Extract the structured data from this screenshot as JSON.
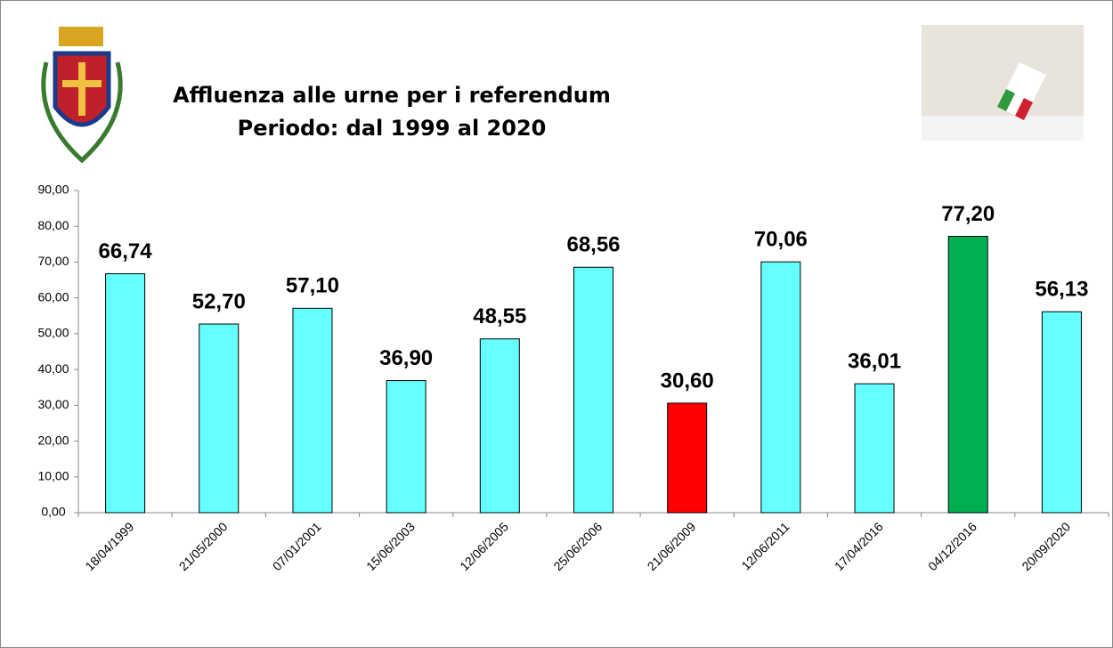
{
  "chart_data": {
    "type": "bar",
    "title": "Affluenza alle urne per i referendum",
    "subtitle": "Periodo: dal 1999 al 2020",
    "categories": [
      "18/04/1999",
      "21/05/2000",
      "07/01/2001",
      "15/06/2003",
      "12/06/2005",
      "25/06/2006",
      "21/06/2009",
      "12/06/2011",
      "17/04/2016",
      "04/12/2016",
      "20/09/2020"
    ],
    "values": [
      66.74,
      52.7,
      57.1,
      36.9,
      48.55,
      68.56,
      30.6,
      70.06,
      36.01,
      77.2,
      56.13
    ],
    "value_labels": [
      "66,74",
      "52,70",
      "57,10",
      "36,90",
      "48,55",
      "68,56",
      "30,60",
      "70,06",
      "36,01",
      "77,20",
      "56,13"
    ],
    "colors": [
      "#66ffff",
      "#66ffff",
      "#66ffff",
      "#66ffff",
      "#66ffff",
      "#66ffff",
      "#ff0000",
      "#66ffff",
      "#66ffff",
      "#00b050",
      "#66ffff"
    ],
    "ylim": [
      0,
      90
    ],
    "yticks": [
      {
        "value": 0,
        "label": "0,00"
      },
      {
        "value": 10,
        "label": "10,00"
      },
      {
        "value": 20,
        "label": "20,00"
      },
      {
        "value": 30,
        "label": "30,00"
      },
      {
        "value": 40,
        "label": "40,00"
      },
      {
        "value": 50,
        "label": "50,00"
      },
      {
        "value": 60,
        "label": "60,00"
      },
      {
        "value": 70,
        "label": "70,00"
      },
      {
        "value": 80,
        "label": "80,00"
      },
      {
        "value": 90,
        "label": "90,00"
      }
    ],
    "grid": false
  }
}
